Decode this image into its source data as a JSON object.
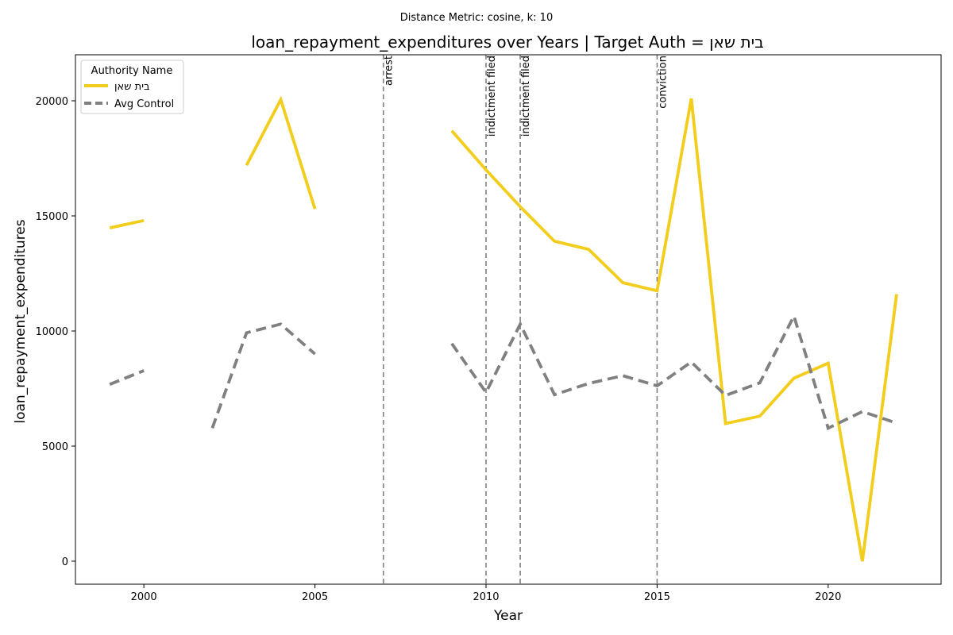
{
  "chart_data": {
    "type": "line",
    "suptitle": "Distance Metric: cosine, k: 10",
    "title": "loan_repayment_expenditures over Years | Target Auth = בית שאן",
    "xlabel": "Year",
    "ylabel": "loan_repayment_expenditures",
    "xlim": [
      1998,
      2023.3
    ],
    "ylim": [
      -1000,
      22000
    ],
    "xticks": [
      2000,
      2005,
      2010,
      2015,
      2020
    ],
    "yticks": [
      0,
      5000,
      10000,
      15000,
      20000
    ],
    "grid": false,
    "legend": {
      "title": "Authority Name",
      "placement": "top-left"
    },
    "series": [
      {
        "name": "בית שאן",
        "color": "#f2cd1c",
        "style": "solid",
        "points": [
          [
            1999,
            14480
          ],
          [
            2000,
            14800
          ],
          [
            2001,
            null
          ],
          [
            2002,
            null
          ],
          [
            2003,
            17200
          ],
          [
            2004,
            20050
          ],
          [
            2005,
            15300
          ],
          [
            2006,
            null
          ],
          [
            2007,
            null
          ],
          [
            2008,
            null
          ],
          [
            2009,
            18700
          ],
          [
            2010,
            17000
          ],
          [
            2011,
            15400
          ],
          [
            2012,
            13900
          ],
          [
            2013,
            13550
          ],
          [
            2014,
            12100
          ],
          [
            2015,
            11750
          ],
          [
            2016,
            20100
          ],
          [
            2017,
            5980
          ],
          [
            2018,
            6300
          ],
          [
            2019,
            7950
          ],
          [
            2020,
            8600
          ],
          [
            2021,
            0
          ],
          [
            2022,
            11600
          ]
        ]
      },
      {
        "name": "Avg Control",
        "color": "#808080",
        "style": "dashed",
        "points": [
          [
            1999,
            7680
          ],
          [
            2000,
            8280
          ],
          [
            2001,
            null
          ],
          [
            2002,
            5780
          ],
          [
            2003,
            9920
          ],
          [
            2004,
            10300
          ],
          [
            2005,
            9000
          ],
          [
            2006,
            null
          ],
          [
            2007,
            null
          ],
          [
            2008,
            null
          ],
          [
            2009,
            9450
          ],
          [
            2010,
            7330
          ],
          [
            2011,
            10300
          ],
          [
            2012,
            7230
          ],
          [
            2013,
            7720
          ],
          [
            2014,
            8060
          ],
          [
            2015,
            7620
          ],
          [
            2016,
            8650
          ],
          [
            2017,
            7200
          ],
          [
            2018,
            7750
          ],
          [
            2019,
            10650
          ],
          [
            2020,
            5780
          ],
          [
            2021,
            6500
          ],
          [
            2022,
            6000
          ]
        ]
      }
    ],
    "events": [
      {
        "year": 2007,
        "label": "arrest"
      },
      {
        "year": 2010,
        "label": "indictment filed"
      },
      {
        "year": 2011,
        "label": "indictment filed"
      },
      {
        "year": 2015,
        "label": "conviction"
      }
    ]
  }
}
